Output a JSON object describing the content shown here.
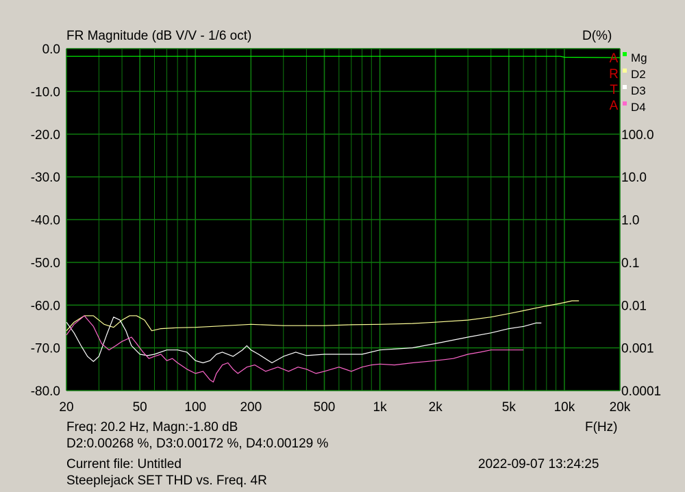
{
  "header": {
    "title": "FR Magnitude (dB V/V - 1/6 oct)",
    "right_axis_title": "D(%)"
  },
  "footer": {
    "readout_line1": "Freq: 20.2 Hz, Magn:-1.80 dB",
    "readout_line2": "D2:0.00268 %, D3:0.00172 %, D4:0.00129 %",
    "freq_unit": "F(Hz)",
    "current_file": "Current file: Untitled",
    "description": "Steeplejack SET THD vs. Freq. 4R",
    "timestamp": "2022-09-07   13:24:25"
  },
  "watermark": [
    "A",
    "R",
    "T",
    "A"
  ],
  "colors": {
    "plot_bg": "#000000",
    "grid": "#0e7a0e",
    "Mg": "#00ff00",
    "D2": "#ffff99",
    "D3": "#ffffff",
    "D4": "#ff66cc"
  },
  "chart_data": {
    "type": "line",
    "title": "FR Magnitude (dB V/V - 1/6 oct)",
    "xlabel": "F(Hz)",
    "x_scale": "log",
    "xlim": [
      20,
      20000
    ],
    "x_ticks": [
      20,
      50,
      100,
      200,
      500,
      1000,
      2000,
      5000,
      10000,
      20000
    ],
    "x_tick_labels": [
      "20",
      "50",
      "100",
      "200",
      "500",
      "1k",
      "2k",
      "5k",
      "10k",
      "20k"
    ],
    "left_axis": {
      "label": "FR Magnitude (dB V/V - 1/6 oct)",
      "ylim": [
        -80,
        0
      ],
      "ticks": [
        0,
        -10,
        -20,
        -30,
        -40,
        -50,
        -60,
        -70,
        -80
      ],
      "tick_labels": [
        "0.0",
        "-10.0",
        "-20.0",
        "-30.0",
        "-40.0",
        "-50.0",
        "-60.0",
        "-70.0",
        "-80.0"
      ]
    },
    "right_axis": {
      "label": "D(%)",
      "scale": "log",
      "ticks": [
        100,
        10,
        1,
        0.1,
        0.01,
        0.001,
        0.0001
      ],
      "tick_labels": [
        "100.0",
        "10.0",
        "1.0",
        "0.1",
        "0.01",
        "0.001",
        "0.0001"
      ]
    },
    "legend": {
      "placement": "top-right",
      "entries": [
        "Mg",
        "D2",
        "D3",
        "D4"
      ]
    },
    "series": [
      {
        "name": "Mg",
        "axis": "left",
        "points": [
          [
            20,
            -1.8
          ],
          [
            100,
            -1.8
          ],
          [
            1000,
            -1.8
          ],
          [
            9500,
            -1.8
          ],
          [
            10000,
            -2.0
          ],
          [
            20000,
            -2.1
          ]
        ]
      },
      {
        "name": "D2",
        "axis": "left",
        "points": [
          [
            20,
            -66
          ],
          [
            22,
            -64
          ],
          [
            25,
            -62.5
          ],
          [
            28,
            -62.5
          ],
          [
            32,
            -64.5
          ],
          [
            36,
            -65.2
          ],
          [
            40,
            -63.5
          ],
          [
            44,
            -62.5
          ],
          [
            48,
            -62.5
          ],
          [
            53,
            -63.5
          ],
          [
            58,
            -66
          ],
          [
            65,
            -65.5
          ],
          [
            80,
            -65.3
          ],
          [
            100,
            -65.2
          ],
          [
            150,
            -64.8
          ],
          [
            200,
            -64.5
          ],
          [
            300,
            -64.8
          ],
          [
            500,
            -64.8
          ],
          [
            700,
            -64.6
          ],
          [
            1000,
            -64.5
          ],
          [
            1500,
            -64.3
          ],
          [
            2000,
            -64.0
          ],
          [
            3000,
            -63.5
          ],
          [
            4000,
            -62.8
          ],
          [
            5000,
            -62.0
          ],
          [
            6000,
            -61.3
          ],
          [
            7000,
            -60.7
          ],
          [
            8000,
            -60.2
          ],
          [
            9000,
            -59.8
          ],
          [
            10000,
            -59.4
          ],
          [
            11000,
            -59.0
          ],
          [
            12000,
            -59.0
          ]
        ]
      },
      {
        "name": "D3",
        "axis": "left",
        "points": [
          [
            20,
            -64
          ],
          [
            22,
            -66.5
          ],
          [
            24,
            -69.5
          ],
          [
            26,
            -72
          ],
          [
            28,
            -73.2
          ],
          [
            30,
            -72
          ],
          [
            33,
            -67
          ],
          [
            36,
            -62.8
          ],
          [
            39,
            -63.5
          ],
          [
            42,
            -66
          ],
          [
            45,
            -69.5
          ],
          [
            50,
            -71.5
          ],
          [
            55,
            -71.8
          ],
          [
            60,
            -71.5
          ],
          [
            70,
            -70.5
          ],
          [
            80,
            -70.5
          ],
          [
            90,
            -71
          ],
          [
            100,
            -73
          ],
          [
            110,
            -73.5
          ],
          [
            120,
            -73
          ],
          [
            130,
            -71.5
          ],
          [
            140,
            -71
          ],
          [
            160,
            -72
          ],
          [
            180,
            -70.5
          ],
          [
            190,
            -69.5
          ],
          [
            200,
            -70.5
          ],
          [
            220,
            -71.5
          ],
          [
            260,
            -73.5
          ],
          [
            300,
            -72
          ],
          [
            350,
            -71
          ],
          [
            400,
            -71.8
          ],
          [
            500,
            -71.5
          ],
          [
            600,
            -71.5
          ],
          [
            800,
            -71.5
          ],
          [
            1000,
            -70.5
          ],
          [
            1500,
            -70.0
          ],
          [
            2000,
            -69.0
          ],
          [
            3000,
            -67.5
          ],
          [
            4000,
            -66.5
          ],
          [
            5000,
            -65.5
          ],
          [
            6000,
            -65
          ],
          [
            7000,
            -64.2
          ],
          [
            7500,
            -64.2
          ]
        ]
      },
      {
        "name": "D4",
        "axis": "left",
        "points": [
          [
            20,
            -67
          ],
          [
            22,
            -64.5
          ],
          [
            25,
            -62.5
          ],
          [
            28,
            -65
          ],
          [
            31,
            -69
          ],
          [
            34,
            -70.5
          ],
          [
            37,
            -69.5
          ],
          [
            40,
            -68.5
          ],
          [
            45,
            -67.5
          ],
          [
            48,
            -69
          ],
          [
            52,
            -71
          ],
          [
            56,
            -72.5
          ],
          [
            60,
            -72
          ],
          [
            65,
            -71.5
          ],
          [
            70,
            -73
          ],
          [
            75,
            -72.5
          ],
          [
            80,
            -73.5
          ],
          [
            90,
            -75
          ],
          [
            100,
            -76
          ],
          [
            110,
            -75.5
          ],
          [
            120,
            -77.5
          ],
          [
            125,
            -78
          ],
          [
            130,
            -76
          ],
          [
            140,
            -74
          ],
          [
            150,
            -73.5
          ],
          [
            160,
            -75
          ],
          [
            170,
            -76
          ],
          [
            190,
            -74.5
          ],
          [
            210,
            -74
          ],
          [
            240,
            -75.5
          ],
          [
            280,
            -74.5
          ],
          [
            320,
            -75.5
          ],
          [
            360,
            -74.5
          ],
          [
            400,
            -75
          ],
          [
            450,
            -76
          ],
          [
            500,
            -75.5
          ],
          [
            600,
            -74.5
          ],
          [
            700,
            -75.5
          ],
          [
            800,
            -74.5
          ],
          [
            900,
            -74
          ],
          [
            1000,
            -73.8
          ],
          [
            1200,
            -74
          ],
          [
            1500,
            -73.5
          ],
          [
            2000,
            -73
          ],
          [
            2500,
            -72.5
          ],
          [
            3000,
            -71.5
          ],
          [
            3500,
            -71
          ],
          [
            4000,
            -70.5
          ],
          [
            5000,
            -70.5
          ],
          [
            6000,
            -70.5
          ]
        ]
      }
    ]
  }
}
